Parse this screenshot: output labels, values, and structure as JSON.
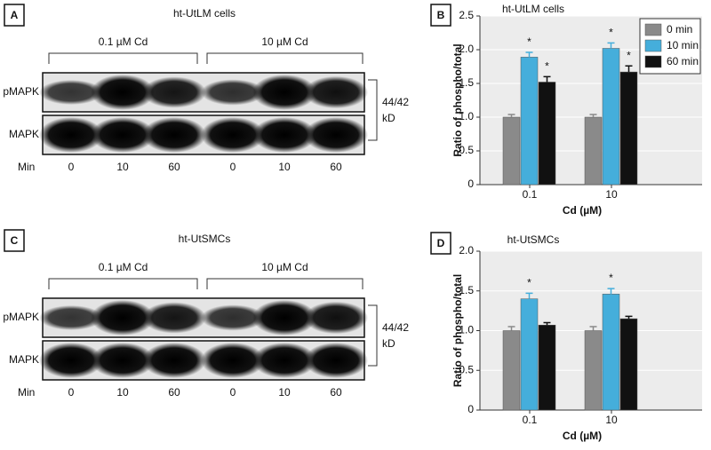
{
  "blots": [
    {
      "letter": "A",
      "title": "ht-UtLM cells",
      "groups": [
        "0.1 µM Cd",
        "10 µM Cd"
      ],
      "rows": [
        "pMAPK",
        "MAPK"
      ],
      "size": [
        "44/42",
        "kD"
      ],
      "lane_label": "Min",
      "lanes": [
        "0",
        "10",
        "60",
        "0",
        "10",
        "60"
      ]
    },
    {
      "letter": "C",
      "title": "ht-UtSMCs",
      "groups": [
        "0.1 µM Cd",
        "10 µM Cd"
      ],
      "rows": [
        "pMAPK",
        "MAPK"
      ],
      "size": [
        "44/42",
        "kD"
      ],
      "lane_label": "Min",
      "lanes": [
        "0",
        "10",
        "60",
        "0",
        "10",
        "60"
      ]
    }
  ],
  "chart_data": [
    {
      "type": "bar",
      "letter": "B",
      "title": "ht-UtLM cells",
      "x_label": "Cd (µM)",
      "y_label": "Ratio of phospho/total",
      "categories": [
        "0.1",
        "10"
      ],
      "series": [
        {
          "name": "0 min",
          "color": "#8a8a8a",
          "values": [
            1.0,
            1.0
          ],
          "errors": [
            0.04,
            0.04
          ]
        },
        {
          "name": "10 min",
          "color": "#45aedb",
          "values": [
            1.89,
            2.02
          ],
          "errors": [
            0.07,
            0.08
          ]
        },
        {
          "name": "60 min",
          "color": "#111111",
          "values": [
            1.52,
            1.67
          ],
          "errors": [
            0.08,
            0.09
          ]
        }
      ],
      "annotations": [
        {
          "text": "*",
          "series": 1,
          "category": 0
        },
        {
          "text": "*",
          "series": 2,
          "category": 0
        },
        {
          "text": "*",
          "series": 1,
          "category": 1
        },
        {
          "text": "*",
          "series": 2,
          "category": 1
        }
      ],
      "ylim": [
        0,
        2.5
      ],
      "yticks": [
        0,
        0.5,
        {
          "value": 1,
          "label": "1.0"
        },
        1.5,
        {
          "value": 2,
          "label": "2.0"
        },
        2.5
      ],
      "legend": "top-right"
    },
    {
      "type": "bar",
      "letter": "D",
      "title": "ht-UtSMCs",
      "x_label": "Cd (µM)",
      "y_label": "Ratio of phospho/total",
      "categories": [
        "0.1",
        "10"
      ],
      "series": [
        {
          "color": "#8a8a8a",
          "values": [
            1.0,
            1.0
          ],
          "errors": [
            0.05,
            0.05
          ]
        },
        {
          "color": "#45aedb",
          "values": [
            1.4,
            1.46
          ],
          "errors": [
            0.07,
            0.07
          ]
        },
        {
          "color": "#111111",
          "values": [
            1.07,
            1.15
          ],
          "errors": [
            0.03,
            0.03
          ]
        }
      ],
      "annotations": [
        {
          "text": "*",
          "series": 1,
          "category": 0
        },
        {
          "text": "*",
          "series": 1,
          "category": 1
        }
      ],
      "ylim": [
        0,
        2
      ],
      "yticks": [
        0,
        0.5,
        {
          "value": 1,
          "label": "1.0"
        },
        1.5,
        {
          "value": 2,
          "label": "2.0"
        }
      ],
      "legend": false
    }
  ]
}
